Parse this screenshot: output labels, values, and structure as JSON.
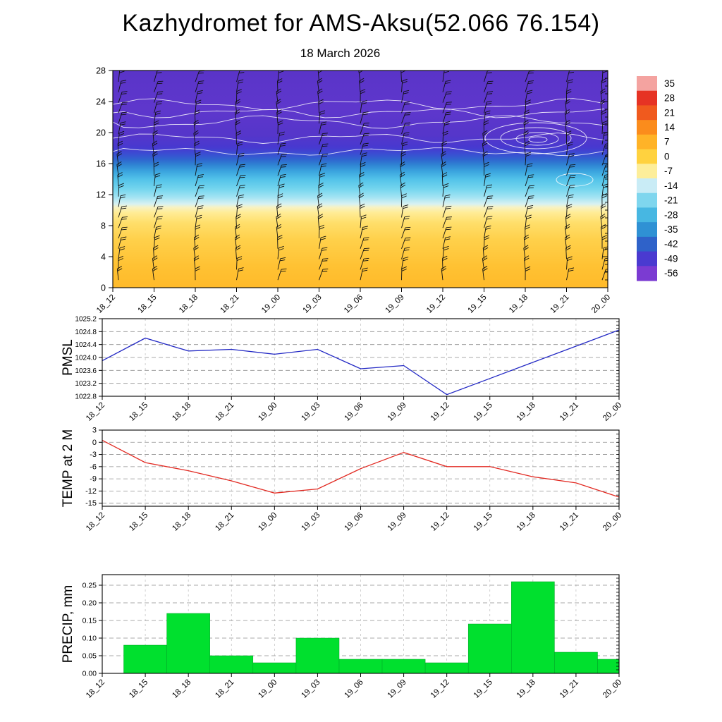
{
  "page": {
    "title": "Kazhydromet for AMS-Aksu(52.066 76.154)",
    "subtitle": "18 March 2026"
  },
  "time_labels": [
    "18_12",
    "18_15",
    "18_18",
    "18_21",
    "19_00",
    "19_03",
    "19_06",
    "19_09",
    "19_12",
    "19_15",
    "19_18",
    "19_21",
    "20_00"
  ],
  "chart_data": [
    {
      "type": "heatmap",
      "name": "upper air cross section",
      "description": "Time-height cross-section, shaded temperature with wind barbs overlaid",
      "x": [
        "18_12",
        "18_15",
        "18_18",
        "18_21",
        "19_00",
        "19_03",
        "19_06",
        "19_09",
        "19_12",
        "19_15",
        "19_18",
        "19_21",
        "20_00"
      ],
      "ylim": [
        0,
        28
      ],
      "y_tick_labels": [
        "28",
        "24",
        "20",
        "16",
        "12",
        "8",
        "4",
        "0"
      ],
      "colorbar": {
        "tick_labels": [
          "35",
          "28",
          "21",
          "14",
          "7",
          "0",
          "-7",
          "-14",
          "-21",
          "-28",
          "-35",
          "-42",
          "-49",
          "-56"
        ],
        "colors": [
          "#f4a3a0",
          "#e63324",
          "#f05a1e",
          "#fb8c1c",
          "#ffb327",
          "#ffd23f",
          "#fdee9a",
          "#c9ecf6",
          "#7fd6ee",
          "#47b7e2",
          "#2f91d4",
          "#2f62c9",
          "#4a3ad0",
          "#7b3bd2"
        ]
      },
      "gradient_stops": [
        [
          0.0,
          "#5a34c8"
        ],
        [
          0.18,
          "#5e37cc"
        ],
        [
          0.3,
          "#5536ca"
        ],
        [
          0.355,
          "#4739d0"
        ],
        [
          0.385,
          "#3a4ed2"
        ],
        [
          0.41,
          "#2f66cf"
        ],
        [
          0.435,
          "#2f84d3"
        ],
        [
          0.465,
          "#3ba5df"
        ],
        [
          0.5,
          "#52c2e9"
        ],
        [
          0.545,
          "#74d5ee"
        ],
        [
          0.585,
          "#a5e4f3"
        ],
        [
          0.615,
          "#d8f1f2"
        ],
        [
          0.63,
          "#f8f2c2"
        ],
        [
          0.655,
          "#ffec95"
        ],
        [
          0.7,
          "#ffdf6b"
        ],
        [
          0.78,
          "#ffd04a"
        ],
        [
          0.9,
          "#ffc233"
        ],
        [
          1.0,
          "#ffba2a"
        ]
      ]
    },
    {
      "type": "line",
      "name": "PMSL",
      "ylabel": "PMSL",
      "color": "#2228c4",
      "grid": "dashed",
      "x": [
        "18_12",
        "18_15",
        "18_18",
        "18_21",
        "19_00",
        "19_03",
        "19_06",
        "19_09",
        "19_12",
        "19_15",
        "19_18",
        "19_21",
        "20_00"
      ],
      "values": [
        1023.9,
        1024.6,
        1024.2,
        1024.25,
        1024.1,
        1024.25,
        1023.65,
        1023.75,
        1022.85,
        1023.35,
        1023.85,
        1024.35,
        1024.85
      ],
      "ylim": [
        1022.8,
        1025.2
      ],
      "y_ticks": [
        1025.2,
        1024.8,
        1024.4,
        1024.0,
        1023.6,
        1023.2,
        1022.8
      ],
      "y_tick_labels": [
        "1025.2",
        "1024.8",
        "1024.4",
        "1024.0",
        "1023.6",
        "1023.2",
        "1022.8"
      ]
    },
    {
      "type": "line",
      "name": "TEMP at 2 M",
      "ylabel": "TEMP at 2 M",
      "color": "#e22a22",
      "grid": "dashed",
      "x": [
        "18_12",
        "18_15",
        "18_18",
        "18_21",
        "19_00",
        "19_03",
        "19_06",
        "19_09",
        "19_12",
        "19_15",
        "19_18",
        "19_21",
        "20_00"
      ],
      "values": [
        0.5,
        -5,
        -7,
        -9.5,
        -12.5,
        -11.5,
        -6.5,
        -2.5,
        -6,
        -6,
        -8.5,
        -10,
        -13.5
      ],
      "ylim": [
        -15.75,
        3
      ],
      "y_ticks": [
        3,
        0,
        -3,
        -6,
        -9,
        -12,
        -15
      ],
      "y_tick_labels": [
        "3",
        "0",
        "-3",
        "-6",
        "-9",
        "-12",
        "-15"
      ]
    },
    {
      "type": "bar",
      "name": "PRECIP, mm",
      "ylabel": "PRECIP, mm",
      "color": "#00e02e",
      "grid": "dashed",
      "bar_alignment": "centered on each 3-hour tick starting at 18_15",
      "x": [
        "18_15",
        "18_18",
        "18_21",
        "19_00",
        "19_03",
        "19_06",
        "19_09",
        "19_12",
        "19_15",
        "19_18",
        "19_21",
        "20_00"
      ],
      "values": [
        0.08,
        0.17,
        0.05,
        0.03,
        0.1,
        0.04,
        0.04,
        0.03,
        0.14,
        0.26,
        0.06,
        0.04
      ],
      "ylim": [
        0,
        0.28
      ],
      "y_ticks": [
        0.25,
        0.2,
        0.15,
        0.1,
        0.05,
        0.0
      ],
      "y_tick_labels": [
        "0.25",
        "0.20",
        "0.15",
        "0.10",
        "0.05",
        "0.00"
      ]
    }
  ]
}
